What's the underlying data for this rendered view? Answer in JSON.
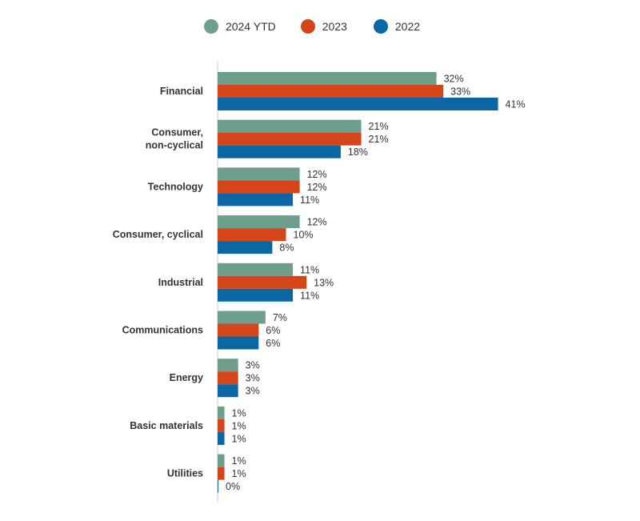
{
  "chart_data": {
    "type": "bar",
    "orientation": "horizontal",
    "title": "",
    "xlabel": "",
    "ylabel": "",
    "xlim": [
      0,
      45
    ],
    "grid": false,
    "legend_position": "top-center",
    "categories": [
      [
        "Financial"
      ],
      [
        "Consumer,",
        "non-cyclical"
      ],
      [
        "Technology"
      ],
      [
        "Consumer, cyclical"
      ],
      [
        "Industrial"
      ],
      [
        "Communications"
      ],
      [
        "Energy"
      ],
      [
        "Basic materials"
      ],
      [
        "Utilities"
      ]
    ],
    "series": [
      {
        "name": "2024 YTD",
        "color": "#6e9e8c",
        "values": [
          32,
          21,
          12,
          12,
          11,
          7,
          3,
          1,
          1
        ]
      },
      {
        "name": "2023",
        "color": "#d4451a",
        "values": [
          33,
          21,
          12,
          10,
          13,
          6,
          3,
          1,
          1
        ]
      },
      {
        "name": "2022",
        "color": "#0a67a3",
        "values": [
          41,
          18,
          11,
          8,
          11,
          6,
          3,
          1,
          0
        ]
      }
    ],
    "value_suffix": "%"
  }
}
